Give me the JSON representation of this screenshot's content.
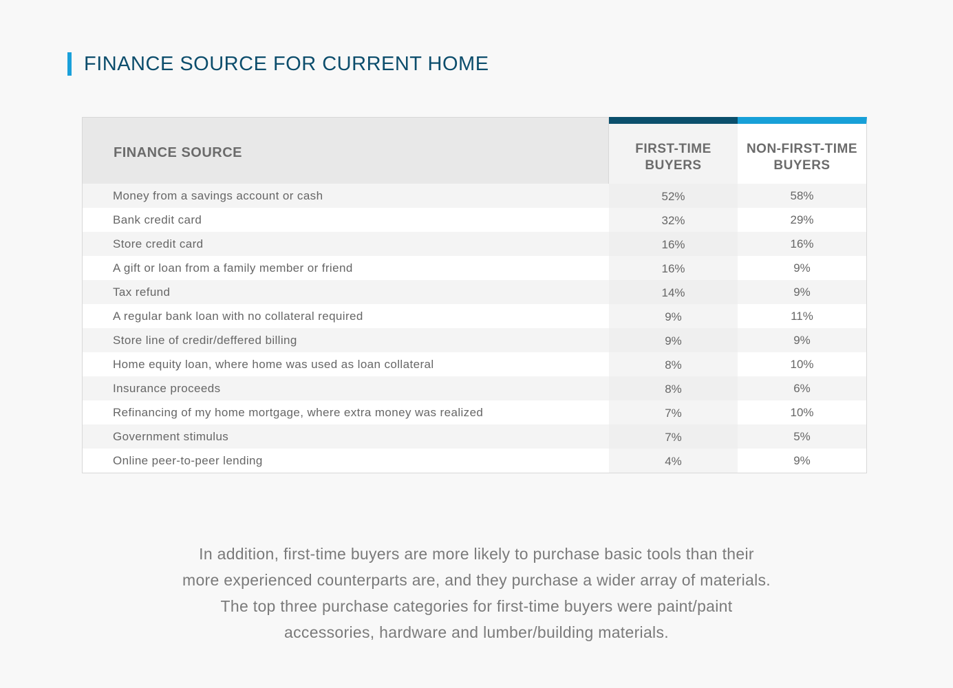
{
  "title": "FINANCE SOURCE FOR CURRENT HOME",
  "colors": {
    "title": "#0c4d6c",
    "accent_dark": "#0b4f6c",
    "accent_light": "#17a0d8"
  },
  "table": {
    "headers": [
      "FINANCE SOURCE",
      "FIRST-TIME BUYERS",
      "NON-FIRST-TIME BUYERS"
    ],
    "rows": [
      {
        "source": "Money from a savings account or cash",
        "first_time": "52%",
        "non_first_time": "58%"
      },
      {
        "source": "Bank credit card",
        "first_time": "32%",
        "non_first_time": "29%"
      },
      {
        "source": "Store credit card",
        "first_time": "16%",
        "non_first_time": "16%"
      },
      {
        "source": "A gift or loan from a family member or friend",
        "first_time": "16%",
        "non_first_time": "9%"
      },
      {
        "source": "Tax refund",
        "first_time": "14%",
        "non_first_time": "9%"
      },
      {
        "source": "A regular bank loan with no collateral required",
        "first_time": "9%",
        "non_first_time": "11%"
      },
      {
        "source": "Store line of credir/deffered billing",
        "first_time": "9%",
        "non_first_time": "9%"
      },
      {
        "source": "Home equity loan, where home was used as loan collateral",
        "first_time": "8%",
        "non_first_time": "10%"
      },
      {
        "source": "Insurance proceeds",
        "first_time": "8%",
        "non_first_time": "6%"
      },
      {
        "source": "Refinancing of my home mortgage, where extra money was realized",
        "first_time": "7%",
        "non_first_time": "10%"
      },
      {
        "source": "Government stimulus",
        "first_time": "7%",
        "non_first_time": "5%"
      },
      {
        "source": "Online peer-to-peer lending",
        "first_time": "4%",
        "non_first_time": "9%"
      }
    ]
  },
  "paragraph_lines": [
    "In addition, first-time buyers are more likely to purchase basic tools than their",
    "more experienced counterparts are, and they purchase a wider array of materials.",
    "The top three purchase categories for first-time buyers were paint/paint",
    "accessories, hardware and lumber/building materials."
  ]
}
